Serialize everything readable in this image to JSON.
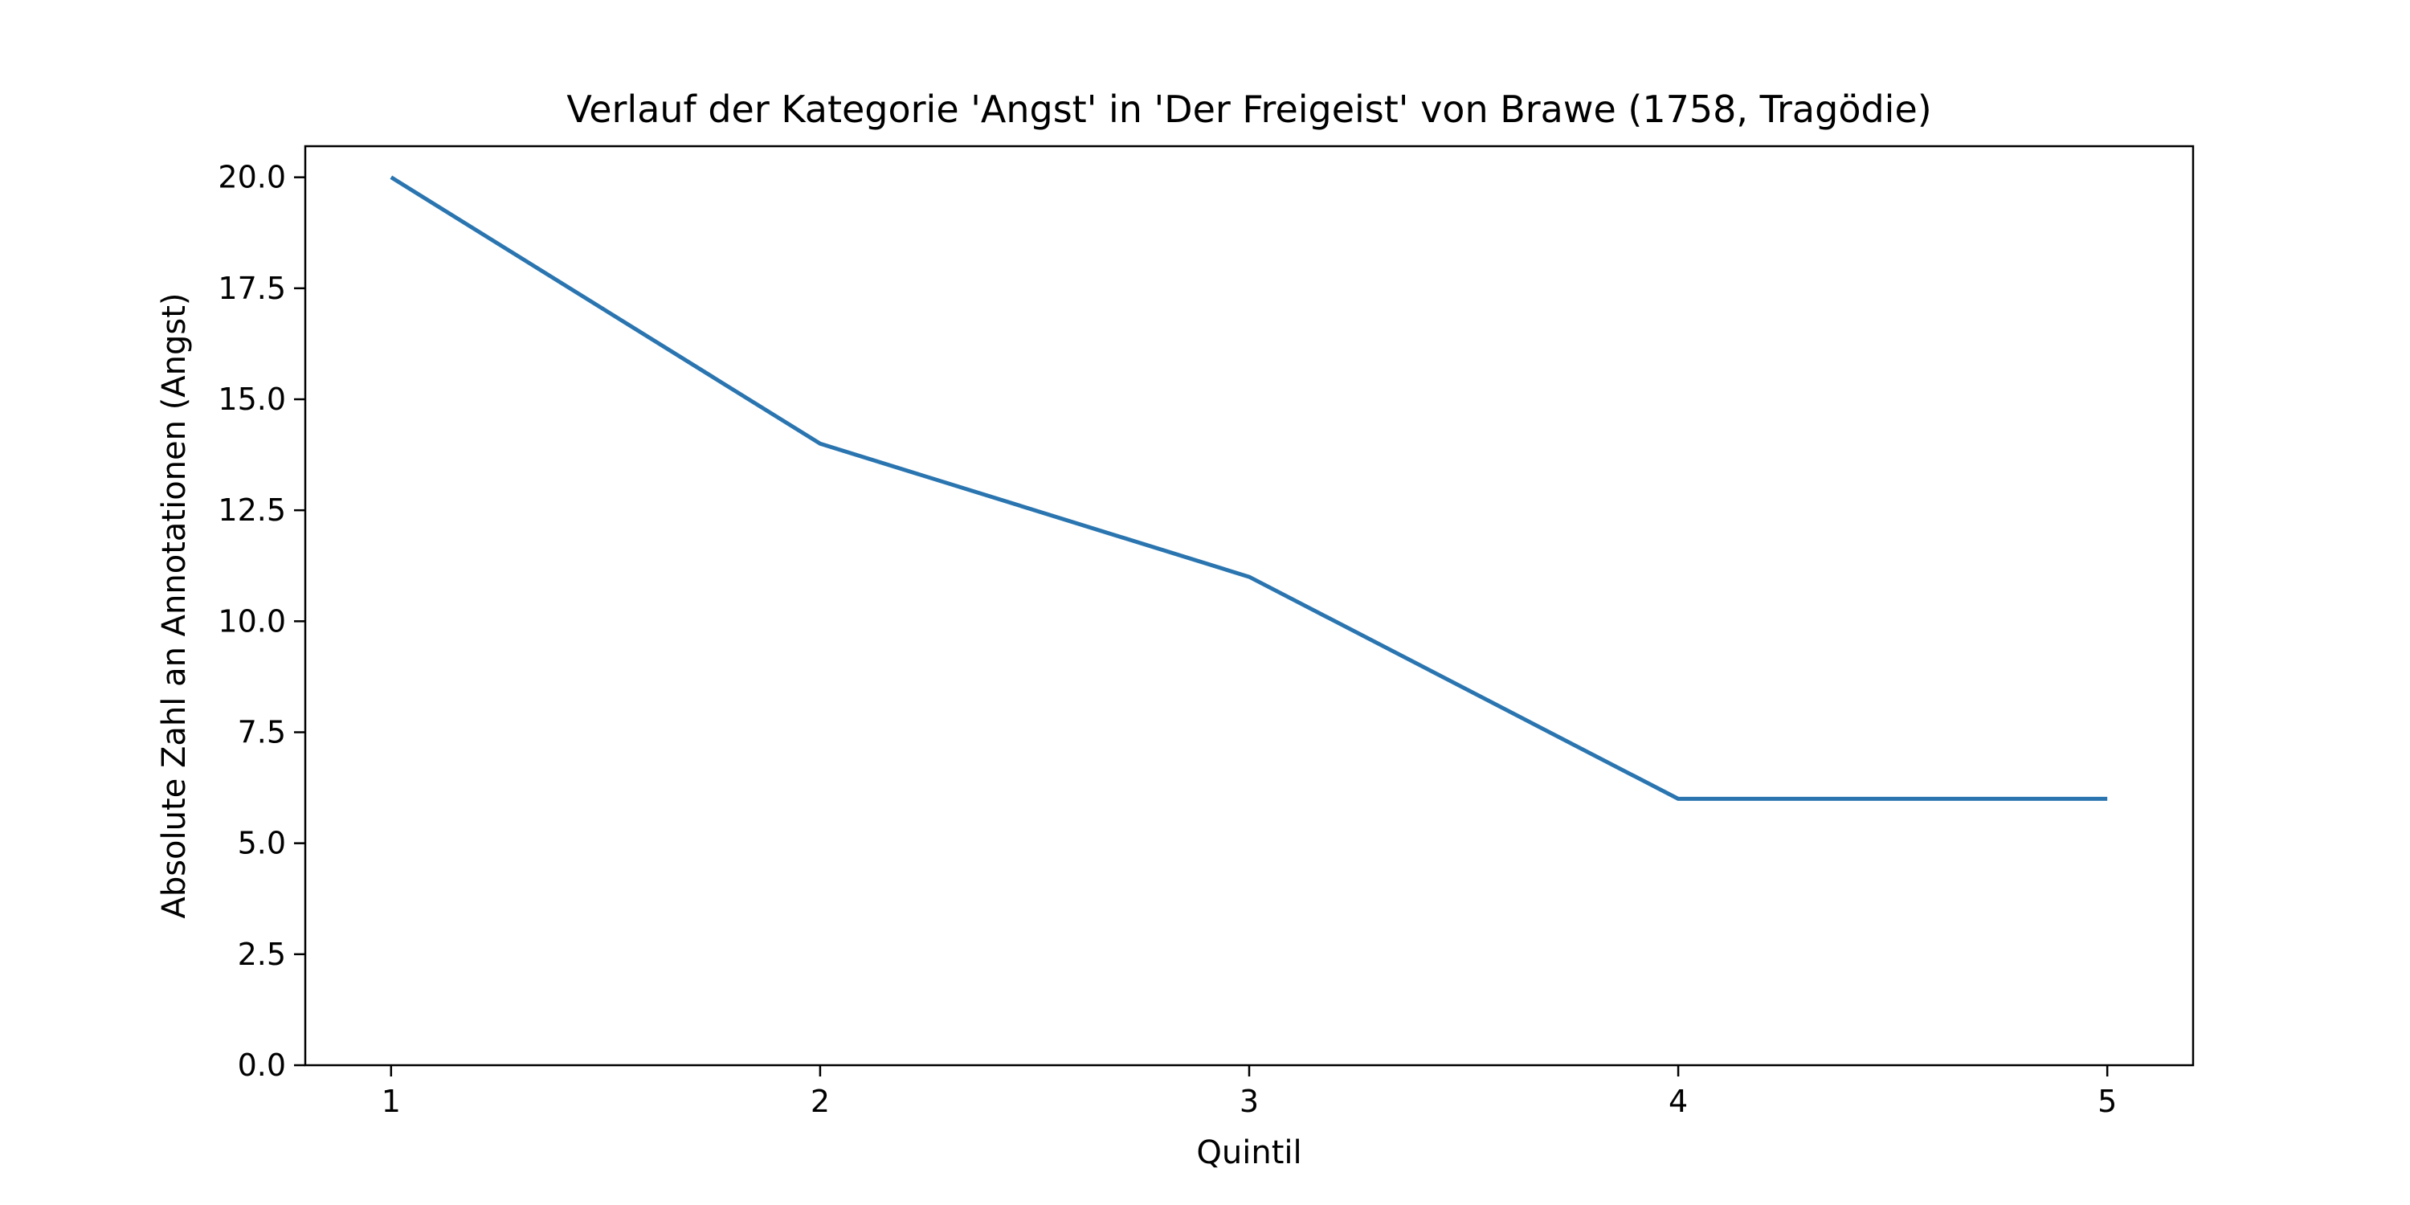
{
  "chart_data": {
    "type": "line",
    "title": "Verlauf der Kategorie 'Angst' in 'Der Freigeist' von Brawe (1758, Tragödie)",
    "xlabel": "Quintil",
    "ylabel": "Absolute Zahl an Annotationen (Angst)",
    "x": [
      1,
      2,
      3,
      4,
      5
    ],
    "x_ticks": [
      "1",
      "2",
      "3",
      "4",
      "5"
    ],
    "y_ticks": [
      "0.0",
      "2.5",
      "5.0",
      "7.5",
      "10.0",
      "12.5",
      "15.0",
      "17.5",
      "20.0"
    ],
    "xlim": [
      0.8,
      5.2
    ],
    "ylim": [
      0,
      20.7
    ],
    "grid": false,
    "series": [
      {
        "values": [
          20,
          14,
          11,
          6,
          6
        ],
        "color": "#2a75b0"
      }
    ]
  }
}
